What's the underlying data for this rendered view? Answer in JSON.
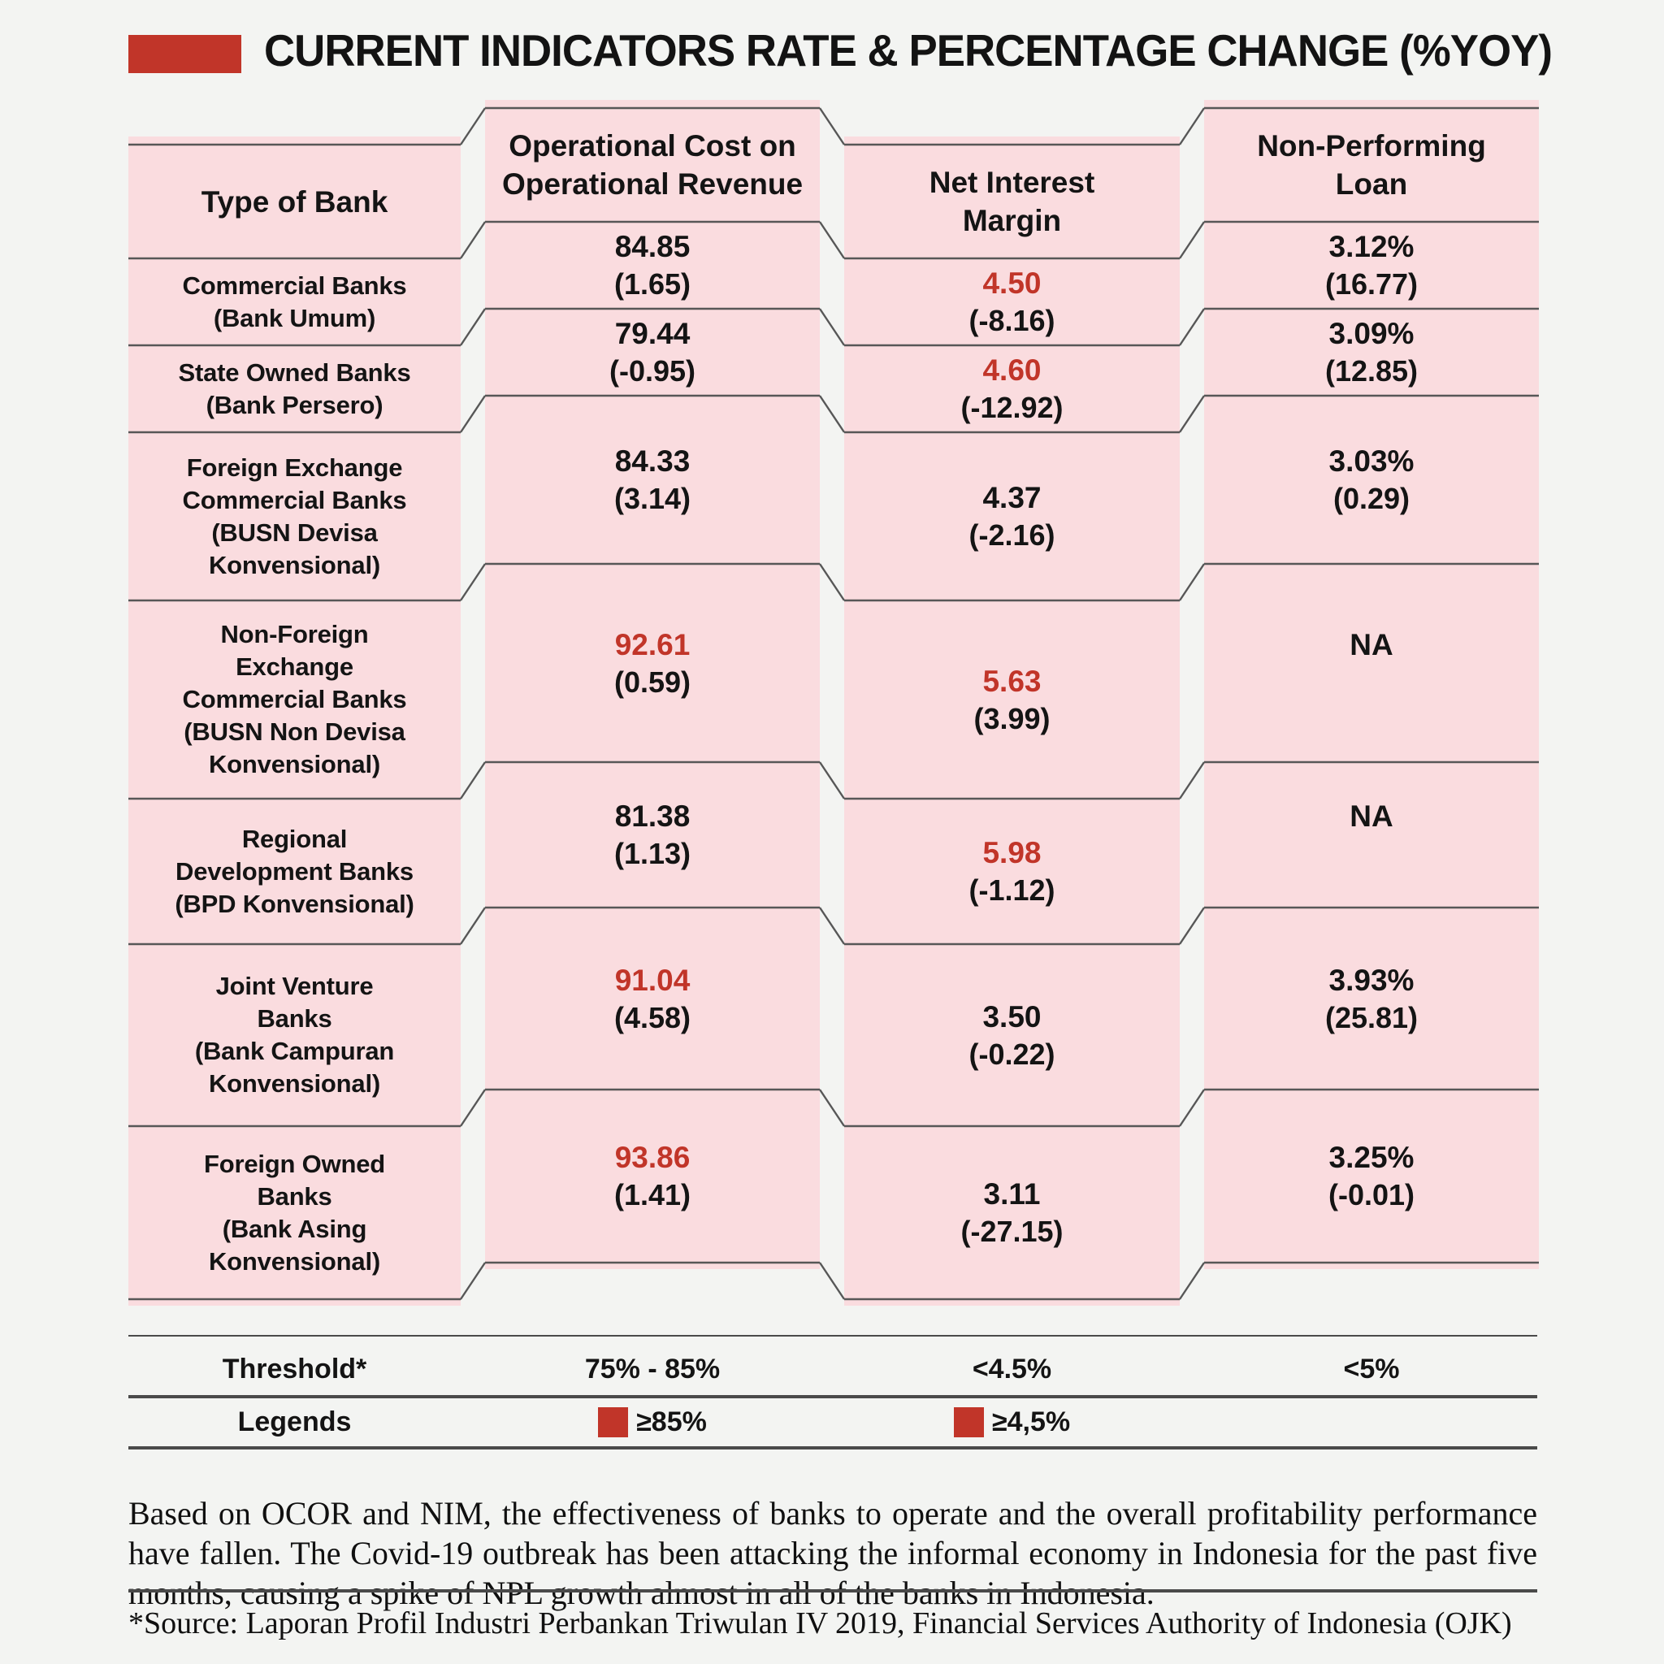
{
  "title": "CURRENT INDICATORS RATE & PERCENTAGE CHANGE (%YOY)",
  "columns": {
    "bank": "Type of Bank",
    "ocor": "Operational Cost on\nOperational Revenue",
    "nim": "Net Interest\nMargin",
    "npl": "Non-Performing\nLoan"
  },
  "rows": [
    {
      "bank": "Commercial Banks\n(Bank Umum)",
      "ocor": {
        "rate": "84.85",
        "change": "(1.65)",
        "alert": false
      },
      "nim": {
        "rate": "4.50",
        "change": "(-8.16)",
        "alert": true
      },
      "npl": {
        "rate": "3.12%",
        "change": "(16.77)"
      }
    },
    {
      "bank": "State Owned Banks\n(Bank Persero)",
      "ocor": {
        "rate": "79.44",
        "change": "(-0.95)",
        "alert": false
      },
      "nim": {
        "rate": "4.60",
        "change": "(-12.92)",
        "alert": true
      },
      "npl": {
        "rate": "3.09%",
        "change": "(12.85)"
      }
    },
    {
      "bank": "Foreign Exchange\nCommercial Banks\n(BUSN Devisa\nKonvensional)",
      "ocor": {
        "rate": "84.33",
        "change": "(3.14)",
        "alert": false
      },
      "nim": {
        "rate": "4.37",
        "change": "(-2.16)",
        "alert": false
      },
      "npl": {
        "rate": "3.03%",
        "change": "(0.29)"
      }
    },
    {
      "bank": "Non-Foreign\nExchange\nCommercial Banks\n(BUSN Non Devisa\nKonvensional)",
      "ocor": {
        "rate": "92.61",
        "change": "(0.59)",
        "alert": true
      },
      "nim": {
        "rate": "5.63",
        "change": "(3.99)",
        "alert": true
      },
      "npl": {
        "rate": "NA",
        "change": ""
      }
    },
    {
      "bank": "Regional\nDevelopment Banks\n(BPD Konvensional)",
      "ocor": {
        "rate": "81.38",
        "change": "(1.13)",
        "alert": false
      },
      "nim": {
        "rate": "5.98",
        "change": "(-1.12)",
        "alert": true
      },
      "npl": {
        "rate": "NA",
        "change": ""
      }
    },
    {
      "bank": "Joint Venture\nBanks\n(Bank Campuran\nKonvensional)",
      "ocor": {
        "rate": "91.04",
        "change": "(4.58)",
        "alert": true
      },
      "nim": {
        "rate": "3.50",
        "change": "(-0.22)",
        "alert": false
      },
      "npl": {
        "rate": "3.93%",
        "change": "(25.81)"
      }
    },
    {
      "bank": "Foreign Owned\nBanks\n(Bank Asing\nKonvensional)",
      "ocor": {
        "rate": "93.86",
        "change": "(1.41)",
        "alert": true
      },
      "nim": {
        "rate": "3.11",
        "change": "(-27.15)",
        "alert": false
      },
      "npl": {
        "rate": "3.25%",
        "change": "(-0.01)"
      }
    }
  ],
  "threshold": {
    "label": "Threshold*",
    "ocor": "75% - 85%",
    "nim": "<4.5%",
    "npl": "<5%"
  },
  "legends": {
    "label": "Legends",
    "ocor": "≥85%",
    "nim": "≥4,5%"
  },
  "note": "Based on OCOR and NIM, the effectiveness of banks to operate and the overall profitability performance have fallen. The Covid-19 outbreak has been attacking the informal economy in Indonesia for the past five months, causing a spike of NPL growth almost in all of the banks in Indonesia.",
  "source": "*Source: Laporan Profil Industri Perbankan Triwulan IV 2019, Financial Services Authority of Indonesia (OJK)",
  "colors": {
    "accent_red": "#c13529",
    "cell_pink": "#fadcdf",
    "line_gray": "#575757",
    "background": "#f3f4f2"
  },
  "chart_data": {
    "type": "table",
    "title": "CURRENT INDICATORS RATE & PERCENTAGE CHANGE (%YOY)",
    "columns": [
      "Type of Bank",
      "Operational Cost on Operational Revenue",
      "Net Interest Margin",
      "Non-Performing Loan"
    ],
    "rows": [
      {
        "bank": "Commercial Banks (Bank Umum)",
        "ocor_rate": 84.85,
        "ocor_change_yoy": 1.65,
        "nim_rate": 4.5,
        "nim_change_yoy": -8.16,
        "npl_rate_pct": 3.12,
        "npl_change_yoy": 16.77
      },
      {
        "bank": "State Owned Banks (Bank Persero)",
        "ocor_rate": 79.44,
        "ocor_change_yoy": -0.95,
        "nim_rate": 4.6,
        "nim_change_yoy": -12.92,
        "npl_rate_pct": 3.09,
        "npl_change_yoy": 12.85
      },
      {
        "bank": "Foreign Exchange Commercial Banks (BUSN Devisa Konvensional)",
        "ocor_rate": 84.33,
        "ocor_change_yoy": 3.14,
        "nim_rate": 4.37,
        "nim_change_yoy": -2.16,
        "npl_rate_pct": 3.03,
        "npl_change_yoy": 0.29
      },
      {
        "bank": "Non-Foreign Exchange Commercial Banks (BUSN Non Devisa Konvensional)",
        "ocor_rate": 92.61,
        "ocor_change_yoy": 0.59,
        "nim_rate": 5.63,
        "nim_change_yoy": 3.99,
        "npl_rate_pct": null,
        "npl_change_yoy": null
      },
      {
        "bank": "Regional Development Banks (BPD Konvensional)",
        "ocor_rate": 81.38,
        "ocor_change_yoy": 1.13,
        "nim_rate": 5.98,
        "nim_change_yoy": -1.12,
        "npl_rate_pct": null,
        "npl_change_yoy": null
      },
      {
        "bank": "Joint Venture Banks (Bank Campuran Konvensional)",
        "ocor_rate": 91.04,
        "ocor_change_yoy": 4.58,
        "nim_rate": 3.5,
        "nim_change_yoy": -0.22,
        "npl_rate_pct": 3.93,
        "npl_change_yoy": 25.81
      },
      {
        "bank": "Foreign Owned Banks (Bank Asing Konvensional)",
        "ocor_rate": 93.86,
        "ocor_change_yoy": 1.41,
        "nim_rate": 3.11,
        "nim_change_yoy": -27.15,
        "npl_rate_pct": 3.25,
        "npl_change_yoy": -0.01
      }
    ],
    "thresholds": {
      "ocor": "75% - 85%",
      "nim": "<4.5%",
      "npl": "<5%"
    },
    "legend_flags": {
      "ocor_red_if": ">=85%",
      "nim_red_if": ">=4,5%"
    }
  }
}
